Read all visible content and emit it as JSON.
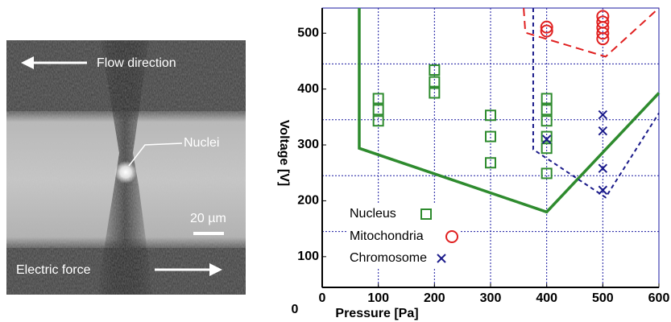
{
  "image": {
    "flow_label": "Flow direction",
    "nuclei_label": "Nuclei",
    "scale_label": "20 µm",
    "force_label": "Electric force"
  },
  "chart_data": {
    "type": "scatter",
    "xlabel": "Pressure [Pa]",
    "ylabel": "Voltage [V]",
    "origin_label": "0",
    "xlim": [
      0,
      600
    ],
    "ylim": [
      45,
      545
    ],
    "xticks": [
      0,
      100,
      200,
      300,
      400,
      500,
      600
    ],
    "yticks": [
      100,
      200,
      300,
      400,
      500
    ],
    "xgrid": [
      100,
      200,
      300,
      400,
      500
    ],
    "ygrid": [
      145,
      245,
      345,
      445
    ],
    "series": [
      {
        "name": "Nucleus",
        "color": "#2e8b2e",
        "marker": "square",
        "x": [
          100,
          100,
          100,
          200,
          200,
          200,
          300,
          300,
          300,
          400,
          400,
          400,
          400,
          400,
          400
        ],
        "values": [
          383,
          363,
          343,
          434,
          413,
          393,
          353,
          315,
          268,
          383,
          363,
          343,
          315,
          294,
          249
        ]
      },
      {
        "name": "Mitochondria",
        "color": "#e02020",
        "marker": "circle",
        "x": [
          400,
          400,
          500,
          500,
          500,
          500,
          500
        ],
        "values": [
          511,
          504,
          530,
          520,
          510,
          500,
          490
        ]
      },
      {
        "name": "Chromosome",
        "color": "#1a1a8a",
        "marker": "cross",
        "x": [
          400,
          500,
          500,
          500,
          500
        ],
        "values": [
          310,
          354,
          325,
          258,
          219
        ]
      }
    ],
    "boundaries": [
      {
        "color": "#2e8b2e",
        "dashed": false,
        "x": [
          66,
          66,
          400,
          600
        ],
        "values": [
          545,
          294,
          180,
          393
        ]
      },
      {
        "color": "#e02020",
        "dashed": true,
        "x": [
          359,
          362,
          505,
          600
        ],
        "values": [
          545,
          501,
          458,
          545
        ]
      },
      {
        "color": "#1a1a8a",
        "dashed": true,
        "x": [
          376,
          376,
          505,
          600
        ],
        "values": [
          545,
          292,
          206,
          357
        ]
      }
    ]
  }
}
